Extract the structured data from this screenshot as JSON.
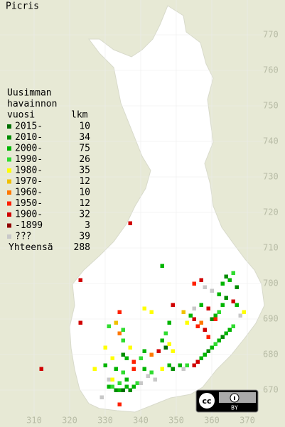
{
  "map": {
    "title": "Picris",
    "legend": {
      "heading": [
        "Uusimman",
        "havainnon",
        "vuosi"
      ],
      "count_heading": "lkm",
      "entries": [
        {
          "label": "2015-",
          "count": 10,
          "color": "#006e00"
        },
        {
          "label": "2010-",
          "count": 34,
          "color": "#008c00"
        },
        {
          "label": "2000-",
          "count": 75,
          "color": "#00b400"
        },
        {
          "label": "1990-",
          "count": 26,
          "color": "#30dc30"
        },
        {
          "label": "1980-",
          "count": 35,
          "color": "#ffff00"
        },
        {
          "label": "1970-",
          "count": 12,
          "color": "#f0c000"
        },
        {
          "label": "1960-",
          "count": 10,
          "color": "#ff7800"
        },
        {
          "label": "1950-",
          "count": 12,
          "color": "#ff2000"
        },
        {
          "label": "1900-",
          "count": 32,
          "color": "#d00000"
        },
        {
          "label": "-1899",
          "count": 3,
          "color": "#900000"
        },
        {
          "label": "???",
          "count": 39,
          "color": "#c8c8c8"
        }
      ],
      "total_label": "Yhteensä",
      "total": 288
    },
    "xticks": [
      310,
      320,
      330,
      340,
      350,
      360,
      370
    ],
    "yticks": [
      670,
      680,
      690,
      700,
      710,
      720,
      730,
      740,
      750,
      760,
      770
    ],
    "license_label": "BY",
    "cells": [
      {
        "x": 331,
        "y": 671,
        "period": "2000-"
      },
      {
        "x": 332,
        "y": 671,
        "period": "1990-"
      },
      {
        "x": 333,
        "y": 670,
        "period": "2010-"
      },
      {
        "x": 334,
        "y": 670,
        "period": "2000-"
      },
      {
        "x": 335,
        "y": 670,
        "period": "2015-"
      },
      {
        "x": 336,
        "y": 671,
        "period": "2000-"
      },
      {
        "x": 337,
        "y": 670,
        "period": "2010-"
      },
      {
        "x": 338,
        "y": 671,
        "period": "2000-"
      },
      {
        "x": 339,
        "y": 672,
        "period": "1990-"
      },
      {
        "x": 340,
        "y": 672,
        "period": "???"
      },
      {
        "x": 331,
        "y": 673,
        "period": "???"
      },
      {
        "x": 332,
        "y": 673,
        "period": "1980-"
      },
      {
        "x": 334,
        "y": 672,
        "period": "1990-"
      },
      {
        "x": 336,
        "y": 673,
        "period": "2000-"
      },
      {
        "x": 342,
        "y": 674,
        "period": "???"
      },
      {
        "x": 344,
        "y": 673,
        "period": "???"
      },
      {
        "x": 343,
        "y": 675,
        "period": "1990-"
      },
      {
        "x": 341,
        "y": 676,
        "period": "2000-"
      },
      {
        "x": 338,
        "y": 676,
        "period": "1950-"
      },
      {
        "x": 335,
        "y": 675,
        "period": "1990-"
      },
      {
        "x": 333,
        "y": 676,
        "period": "2000-"
      },
      {
        "x": 329,
        "y": 668,
        "period": "???"
      },
      {
        "x": 334,
        "y": 666,
        "period": "1950-"
      },
      {
        "x": 327,
        "y": 676,
        "period": "1980-"
      },
      {
        "x": 312,
        "y": 676,
        "period": "1900-"
      },
      {
        "x": 346,
        "y": 676,
        "period": "1980-"
      },
      {
        "x": 348,
        "y": 677,
        "period": "2000-"
      },
      {
        "x": 349,
        "y": 676,
        "period": "2010-"
      },
      {
        "x": 351,
        "y": 677,
        "period": "2000-"
      },
      {
        "x": 352,
        "y": 676,
        "period": "???"
      },
      {
        "x": 353,
        "y": 677,
        "period": "1990-"
      },
      {
        "x": 355,
        "y": 677,
        "period": "1900-"
      },
      {
        "x": 356,
        "y": 678,
        "period": "1900-"
      },
      {
        "x": 357,
        "y": 679,
        "period": "2000-"
      },
      {
        "x": 358,
        "y": 680,
        "period": "2000-"
      },
      {
        "x": 359,
        "y": 681,
        "period": "2010-"
      },
      {
        "x": 360,
        "y": 682,
        "period": "2000-"
      },
      {
        "x": 361,
        "y": 683,
        "period": "1990-"
      },
      {
        "x": 362,
        "y": 684,
        "period": "2000-"
      },
      {
        "x": 363,
        "y": 685,
        "period": "2010-"
      },
      {
        "x": 364,
        "y": 686,
        "period": "2000-"
      },
      {
        "x": 365,
        "y": 687,
        "period": "2000-"
      },
      {
        "x": 366,
        "y": 688,
        "period": "1990-"
      },
      {
        "x": 359,
        "y": 685,
        "period": "1950-"
      },
      {
        "x": 358,
        "y": 687,
        "period": "1900-"
      },
      {
        "x": 357,
        "y": 689,
        "period": "1960-"
      },
      {
        "x": 356,
        "y": 688,
        "period": "1950-"
      },
      {
        "x": 355,
        "y": 690,
        "period": "1900-"
      },
      {
        "x": 354,
        "y": 691,
        "period": "2000-"
      },
      {
        "x": 353,
        "y": 689,
        "period": "1980-"
      },
      {
        "x": 352,
        "y": 692,
        "period": "1970-"
      },
      {
        "x": 355,
        "y": 693,
        "period": "???"
      },
      {
        "x": 357,
        "y": 694,
        "period": "2000-"
      },
      {
        "x": 359,
        "y": 693,
        "period": "1900-"
      },
      {
        "x": 360,
        "y": 690,
        "period": "2010-"
      },
      {
        "x": 361,
        "y": 691,
        "period": "2000-"
      },
      {
        "x": 362,
        "y": 692,
        "period": "1990-"
      },
      {
        "x": 363,
        "y": 694,
        "period": "2000-"
      },
      {
        "x": 364,
        "y": 696,
        "period": "2010-"
      },
      {
        "x": 362,
        "y": 697,
        "period": "2000-"
      },
      {
        "x": 360,
        "y": 698,
        "period": "???"
      },
      {
        "x": 358,
        "y": 699,
        "period": "???"
      },
      {
        "x": 357,
        "y": 701,
        "period": "1900-"
      },
      {
        "x": 355,
        "y": 700,
        "period": "1950-"
      },
      {
        "x": 363,
        "y": 700,
        "period": "2000-"
      },
      {
        "x": 364,
        "y": 702,
        "period": "2010-"
      },
      {
        "x": 365,
        "y": 701,
        "period": "2000-"
      },
      {
        "x": 366,
        "y": 703,
        "period": "1990-"
      },
      {
        "x": 368,
        "y": 691,
        "period": "???"
      },
      {
        "x": 369,
        "y": 692,
        "period": "1980-"
      },
      {
        "x": 367,
        "y": 694,
        "period": "2000-"
      },
      {
        "x": 348,
        "y": 689,
        "period": "2000-"
      },
      {
        "x": 347,
        "y": 686,
        "period": "1990-"
      },
      {
        "x": 346,
        "y": 684,
        "period": "2000-"
      },
      {
        "x": 347,
        "y": 682,
        "period": "2015-"
      },
      {
        "x": 348,
        "y": 683,
        "period": "1980-"
      },
      {
        "x": 349,
        "y": 681,
        "period": "1980-"
      },
      {
        "x": 345,
        "y": 681,
        "period": "1900-"
      },
      {
        "x": 343,
        "y": 680,
        "period": "1960-"
      },
      {
        "x": 341,
        "y": 681,
        "period": "2000-"
      },
      {
        "x": 340,
        "y": 679,
        "period": "1990-"
      },
      {
        "x": 338,
        "y": 678,
        "period": "1950-"
      },
      {
        "x": 336,
        "y": 679,
        "period": "2000-"
      },
      {
        "x": 335,
        "y": 680,
        "period": "2010-"
      },
      {
        "x": 337,
        "y": 682,
        "period": "1980-"
      },
      {
        "x": 335,
        "y": 684,
        "period": "1990-"
      },
      {
        "x": 334,
        "y": 686,
        "period": "1960-"
      },
      {
        "x": 335,
        "y": 687,
        "period": "1990-"
      },
      {
        "x": 333,
        "y": 689,
        "period": "1970-"
      },
      {
        "x": 331,
        "y": 688,
        "period": "1990-"
      },
      {
        "x": 330,
        "y": 682,
        "period": "1980-"
      },
      {
        "x": 332,
        "y": 679,
        "period": "1980-"
      },
      {
        "x": 330,
        "y": 677,
        "period": "2000-"
      },
      {
        "x": 323,
        "y": 689,
        "period": "1900-"
      },
      {
        "x": 334,
        "y": 692,
        "period": "1950-"
      },
      {
        "x": 341,
        "y": 693,
        "period": "1980-"
      },
      {
        "x": 343,
        "y": 692,
        "period": "1980-"
      },
      {
        "x": 323,
        "y": 701,
        "period": "1900-"
      },
      {
        "x": 346,
        "y": 705,
        "period": "2000-"
      },
      {
        "x": 337,
        "y": 717,
        "period": "1900-"
      },
      {
        "x": 361,
        "y": 690,
        "period": "1950-"
      },
      {
        "x": 349,
        "y": 694,
        "period": "1900-"
      },
      {
        "x": 366,
        "y": 695,
        "period": "1900-"
      },
      {
        "x": 367,
        "y": 699,
        "period": "2010-"
      }
    ]
  }
}
